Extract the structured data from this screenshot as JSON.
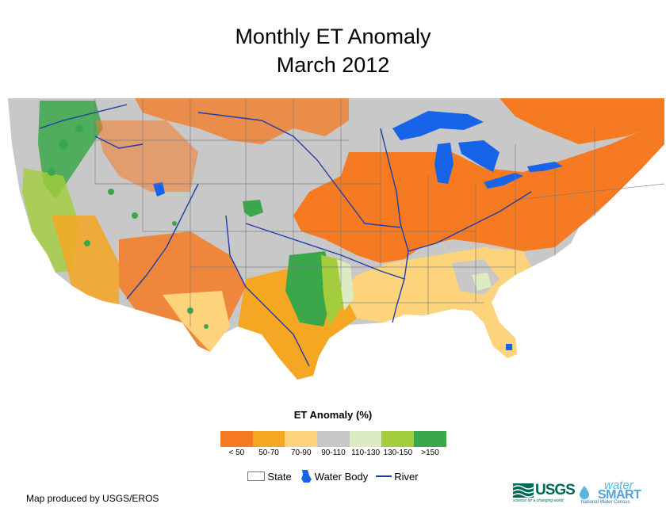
{
  "title": {
    "line1": "Monthly ET Anomaly",
    "line2": "March 2012"
  },
  "legend": {
    "title": "ET Anomaly (%)",
    "classes": [
      {
        "label": "< 50",
        "color": "#f57a22"
      },
      {
        "label": "50-70",
        "color": "#f5a623"
      },
      {
        "label": "70-90",
        "color": "#fdd47c"
      },
      {
        "label": "90-110",
        "color": "#c8c8c8"
      },
      {
        "label": "110-130",
        "color": "#dcebc2"
      },
      {
        "label": "130-150",
        "color": "#a3cd3c"
      },
      {
        "label": ">150",
        "color": "#3aa84a"
      }
    ]
  },
  "layers": {
    "state": "State",
    "water_body": "Water Body",
    "river": "River"
  },
  "colors": {
    "water": "#1764e8",
    "river": "#1e3ea8",
    "state_border": "#777777"
  },
  "credit": "Map produced by USGS/EROS",
  "logos": {
    "usgs": "USGS",
    "usgs_tagline": "science for a changing world",
    "watersmart_top": "water",
    "watersmart_bottom": "SMART",
    "watersmart_sub": "National Water Census"
  }
}
